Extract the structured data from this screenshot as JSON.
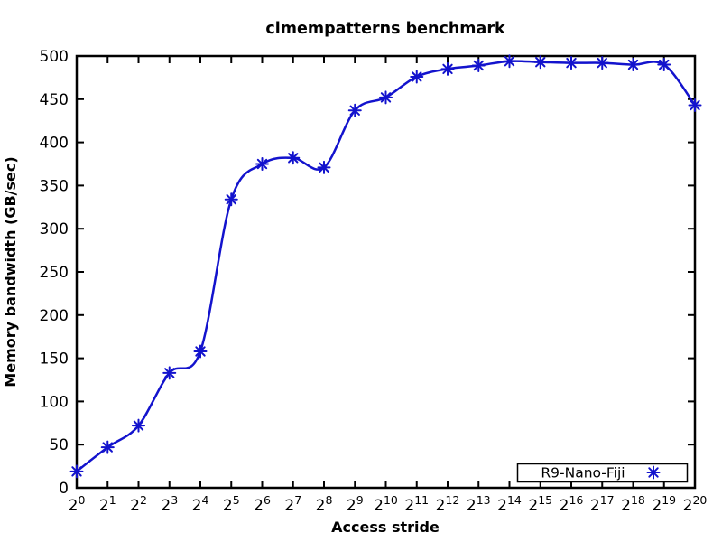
{
  "window": {
    "background_color": "#ffffff",
    "foreground_color": "#000000"
  },
  "chart_data": {
    "type": "line",
    "title": "clmempatterns benchmark",
    "xlabel": "Access stride",
    "ylabel": "Memory bandwidth (GB/sec)",
    "grid": false,
    "legend_position": "bottom-right",
    "x_tick_base": "2",
    "x_exponents": [
      0,
      1,
      2,
      3,
      4,
      5,
      6,
      7,
      8,
      9,
      10,
      11,
      12,
      13,
      14,
      15,
      16,
      17,
      18,
      19,
      20
    ],
    "categories": [
      "2^0",
      "2^1",
      "2^2",
      "2^3",
      "2^4",
      "2^5",
      "2^6",
      "2^7",
      "2^8",
      "2^9",
      "2^10",
      "2^11",
      "2^12",
      "2^13",
      "2^14",
      "2^15",
      "2^16",
      "2^17",
      "2^18",
      "2^19",
      "2^20"
    ],
    "ylim": [
      0,
      500
    ],
    "y_ticks": [
      0,
      50,
      100,
      150,
      200,
      250,
      300,
      350,
      400,
      450,
      500
    ],
    "series": [
      {
        "name": "R9-Nano-Fiji",
        "marker": "asterisk",
        "color": "#1313cd",
        "values": [
          19,
          47,
          72,
          133,
          158,
          334,
          375,
          382,
          371,
          437,
          452,
          476,
          485,
          489,
          494,
          493,
          492,
          492,
          490,
          490,
          443
        ]
      }
    ],
    "frame_color": "#000000"
  }
}
